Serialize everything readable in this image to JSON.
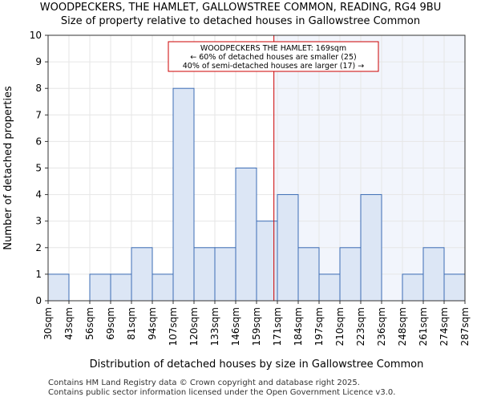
{
  "chart_data": {
    "type": "bar",
    "title": "WOODPECKERS, THE HAMLET, GALLOWSTREE COMMON, READING, RG4 9BU",
    "subtitle": "Size of property relative to detached houses in Gallowstree Common",
    "xlabel": "Distribution of detached houses by size in Gallowstree Common",
    "ylabel": "Number of detached properties",
    "bin_edges": [
      30,
      43,
      56,
      69,
      81,
      94,
      107,
      120,
      133,
      146,
      159,
      171,
      184,
      197,
      210,
      223,
      236,
      248,
      261,
      274,
      287
    ],
    "x_tick_labels": [
      "30sqm",
      "43sqm",
      "56sqm",
      "69sqm",
      "81sqm",
      "94sqm",
      "107sqm",
      "120sqm",
      "133sqm",
      "146sqm",
      "159sqm",
      "171sqm",
      "184sqm",
      "197sqm",
      "210sqm",
      "223sqm",
      "236sqm",
      "248sqm",
      "261sqm",
      "274sqm",
      "287sqm"
    ],
    "values": [
      1,
      0,
      1,
      1,
      2,
      1,
      8,
      2,
      2,
      5,
      3,
      4,
      2,
      1,
      2,
      4,
      0,
      1,
      2,
      1
    ],
    "ylim": [
      0,
      10
    ],
    "y_ticks": [
      0,
      1,
      2,
      3,
      4,
      5,
      6,
      7,
      8,
      9,
      10
    ],
    "marker": {
      "value": 169,
      "label_line1": "WOODPECKERS THE HAMLET: 169sqm",
      "label_line2": "← 60% of detached houses are smaller (25)",
      "label_line3": "40% of semi-detached houses are larger (17) →"
    },
    "colors": {
      "bar_fill": "#dce6f5",
      "bar_stroke": "#3b6cb5",
      "marker_line": "#cc0000",
      "highlight_bg": "#f2f5fc"
    }
  },
  "footer": {
    "line1": "Contains HM Land Registry data © Crown copyright and database right 2025.",
    "line2": "Contains public sector information licensed under the Open Government Licence v3.0."
  }
}
